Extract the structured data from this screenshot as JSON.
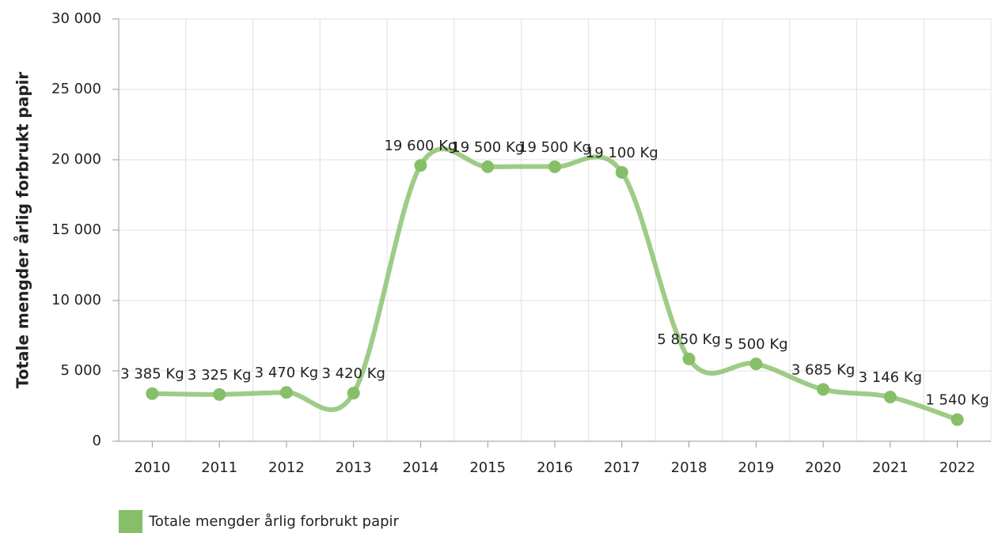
{
  "chart_data": {
    "type": "line",
    "ylabel": "Totale mengder årlig forbrukt papir",
    "categories": [
      "2010",
      "2011",
      "2012",
      "2013",
      "2014",
      "2015",
      "2016",
      "2017",
      "2018",
      "2019",
      "2020",
      "2021",
      "2022"
    ],
    "series": [
      {
        "name": "Totale mengder årlig forbrukt papir",
        "color": "#86bf68",
        "values": [
          3385,
          3325,
          3470,
          3420,
          19600,
          19500,
          19500,
          19100,
          5850,
          5500,
          3685,
          3146,
          1540
        ],
        "value_labels": [
          "3 385 Kg",
          "3 325 Kg",
          "3 470 Kg",
          "3 420 Kg",
          "19 600 Kg",
          "19 500 Kg",
          "19 500 Kg",
          "19 100 Kg",
          "5 850 Kg",
          "5 500 Kg",
          "3 685 Kg",
          "3 146 Kg",
          "1 540 Kg"
        ]
      }
    ],
    "ylim": [
      0,
      30000
    ],
    "yticks": [
      0,
      {
        "value": 5000,
        "label": "5 000"
      },
      {
        "value": 10000,
        "label": "10 000"
      },
      {
        "value": 15000,
        "label": "15 000"
      },
      {
        "value": 20000,
        "label": "20 000"
      },
      {
        "value": 25000,
        "label": "25 000"
      },
      {
        "value": 30000,
        "label": "30 000"
      }
    ],
    "grid": true,
    "legend": "bottom-left"
  }
}
